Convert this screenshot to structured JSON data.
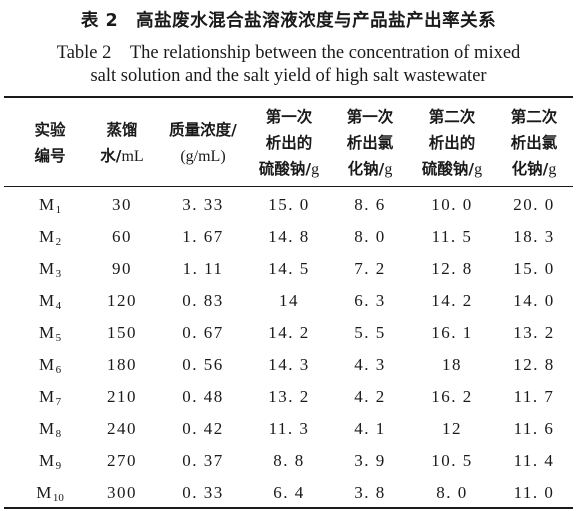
{
  "title_cn": "表 2　高盐废水混合盐溶液浓度与产品盐产出率关系",
  "title_en_line1": "Table 2　The relationship between the concentration of mixed",
  "title_en_line2": "salt solution and the salt yield of high salt wastewater",
  "headers": [
    {
      "l1": "实验",
      "l2": "编号",
      "l3": "",
      "unit": ""
    },
    {
      "l1": "蒸馏",
      "l2": "水/",
      "l3": "",
      "unit": "mL"
    },
    {
      "l1": "质量浓度/",
      "l2": "(g/mL)",
      "l3": "",
      "unit": ""
    },
    {
      "l1": "第一次",
      "l2": "析出的",
      "l3": "硫酸钠/",
      "unit": "g"
    },
    {
      "l1": "第一次",
      "l2": "析出氯",
      "l3": "化钠/",
      "unit": "g"
    },
    {
      "l1": "第二次",
      "l2": "析出的",
      "l3": "硫酸钠/",
      "unit": "g"
    },
    {
      "l1": "第二次",
      "l2": "析出氯",
      "l3": "化钠/",
      "unit": "g"
    }
  ],
  "rows": [
    {
      "id": "M",
      "sub": "1",
      "water": "30",
      "conc": "3. 33",
      "na2so4_1": "15. 0",
      "nacl_1": "8. 6",
      "na2so4_2": "10. 0",
      "nacl_2": "20. 0"
    },
    {
      "id": "M",
      "sub": "2",
      "water": "60",
      "conc": "1. 67",
      "na2so4_1": "14. 8",
      "nacl_1": "8. 0",
      "na2so4_2": "11. 5",
      "nacl_2": "18. 3"
    },
    {
      "id": "M",
      "sub": "3",
      "water": "90",
      "conc": "1. 11",
      "na2so4_1": "14. 5",
      "nacl_1": "7. 2",
      "na2so4_2": "12. 8",
      "nacl_2": "15. 0"
    },
    {
      "id": "M",
      "sub": "4",
      "water": "120",
      "conc": "0. 83",
      "na2so4_1": "14",
      "nacl_1": "6. 3",
      "na2so4_2": "14. 2",
      "nacl_2": "14. 0"
    },
    {
      "id": "M",
      "sub": "5",
      "water": "150",
      "conc": "0. 67",
      "na2so4_1": "14. 2",
      "nacl_1": "5. 5",
      "na2so4_2": "16. 1",
      "nacl_2": "13. 2"
    },
    {
      "id": "M",
      "sub": "6",
      "water": "180",
      "conc": "0. 56",
      "na2so4_1": "14. 3",
      "nacl_1": "4. 3",
      "na2so4_2": "18",
      "nacl_2": "12. 8"
    },
    {
      "id": "M",
      "sub": "7",
      "water": "210",
      "conc": "0. 48",
      "na2so4_1": "13. 2",
      "nacl_1": "4. 2",
      "na2so4_2": "16. 2",
      "nacl_2": "11. 7"
    },
    {
      "id": "M",
      "sub": "8",
      "water": "240",
      "conc": "0. 42",
      "na2so4_1": "11. 3",
      "nacl_1": "4. 1",
      "na2so4_2": "12",
      "nacl_2": "11. 6"
    },
    {
      "id": "M",
      "sub": "9",
      "water": "270",
      "conc": "0. 37",
      "na2so4_1": "8. 8",
      "nacl_1": "3. 9",
      "na2so4_2": "10. 5",
      "nacl_2": "11. 4"
    },
    {
      "id": "M",
      "sub": "10",
      "water": "300",
      "conc": "0. 33",
      "na2so4_1": "6. 4",
      "nacl_1": "3. 8",
      "na2so4_2": "8. 0",
      "nacl_2": "11. 0"
    }
  ]
}
